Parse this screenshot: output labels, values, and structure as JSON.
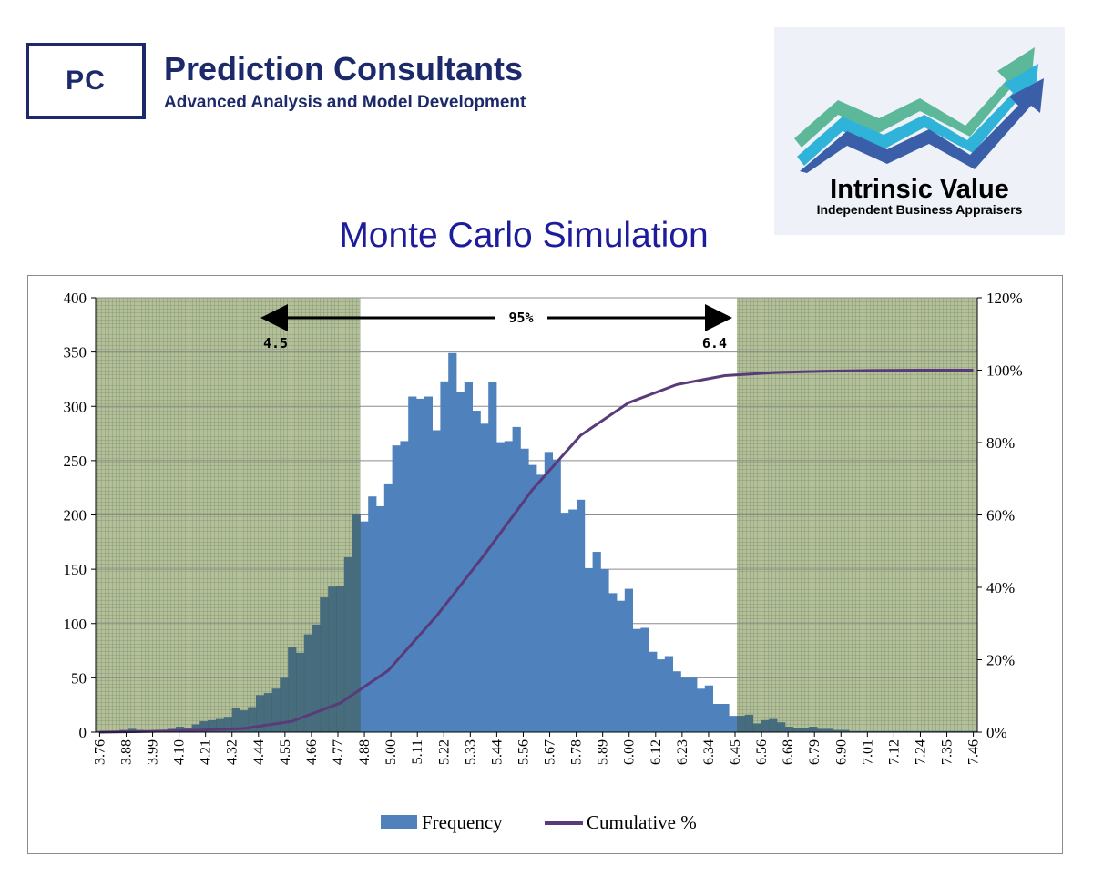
{
  "header": {
    "logo_initials": "PC",
    "company_name": "Prediction Consultants",
    "tagline": "Advanced Analysis and Model Development"
  },
  "partner_logo": {
    "name": "Intrinsic Value",
    "subtitle": "Independent Business Appraisers",
    "icon": "rising-arrows-icon",
    "colors": [
      "#5db89a",
      "#2fb3d8",
      "#3a5fa8"
    ]
  },
  "colors": {
    "bar": "#4f81bd",
    "cumulative_line": "#5a3b7a",
    "shaded_region": "#a9b88f",
    "title": "#1c1c9c",
    "brand": "#1c2a6b"
  },
  "chart_data": {
    "type": "bar",
    "title": "Monte Carlo Simulation",
    "xlabel": "",
    "ylabel": "",
    "ylim": [
      0,
      400
    ],
    "y2lim": [
      0,
      1.2
    ],
    "yticks": [
      "0",
      "50",
      "100",
      "150",
      "200",
      "250",
      "300",
      "350",
      "400"
    ],
    "y2ticks": [
      "0%",
      "20%",
      "40%",
      "60%",
      "80%",
      "100%",
      "120%"
    ],
    "tick_labels": [
      "3.76",
      "3.88",
      "3.99",
      "4.10",
      "4.21",
      "4.32",
      "4.44",
      "4.55",
      "4.66",
      "4.77",
      "4.88",
      "5.00",
      "5.11",
      "5.22",
      "5.33",
      "5.44",
      "5.56",
      "5.67",
      "5.78",
      "5.89",
      "6.00",
      "6.12",
      "6.23",
      "6.34",
      "6.45",
      "6.56",
      "6.68",
      "6.79",
      "6.90",
      "7.01",
      "7.12",
      "7.24",
      "7.35",
      "7.46"
    ],
    "grid": true,
    "legend_position": "bottom",
    "series": [
      {
        "name": "Frequency",
        "type": "bar",
        "values": [
          1,
          1,
          1,
          2,
          3,
          2,
          1,
          1,
          1,
          3,
          5,
          4,
          7,
          10,
          11,
          12,
          14,
          22,
          20,
          23,
          34,
          36,
          40,
          50,
          78,
          73,
          90,
          99,
          124,
          134,
          135,
          161,
          201,
          194,
          217,
          208,
          229,
          264,
          268,
          309,
          307,
          309,
          278,
          323,
          349,
          313,
          322,
          296,
          284,
          322,
          267,
          268,
          281,
          261,
          246,
          237,
          258,
          251,
          202,
          205,
          214,
          151,
          166,
          150,
          128,
          121,
          132,
          95,
          96,
          74,
          67,
          70,
          56,
          50,
          50,
          40,
          43,
          26,
          26,
          15,
          15,
          16,
          8,
          11,
          12,
          9,
          5,
          4,
          4,
          5,
          3,
          3,
          2,
          2,
          1,
          1,
          1,
          1,
          1,
          1,
          1,
          1,
          1,
          1,
          1,
          1,
          1,
          1,
          1,
          1
        ]
      },
      {
        "name": "Cumulative %",
        "type": "line",
        "axis": "right",
        "x_index": [
          0,
          6,
          12,
          18,
          24,
          30,
          36,
          42,
          48,
          54,
          60,
          66,
          72,
          78,
          84,
          90,
          96,
          102,
          108,
          109
        ],
        "values": [
          0.0,
          0.002,
          0.005,
          0.01,
          0.03,
          0.08,
          0.17,
          0.32,
          0.49,
          0.67,
          0.82,
          0.91,
          0.96,
          0.985,
          0.993,
          0.997,
          0.999,
          1.0,
          1.0,
          1.0
        ]
      }
    ],
    "annotations": {
      "interval_label": "95%",
      "lower_bound": "4.5",
      "upper_bound": "6.4"
    }
  }
}
